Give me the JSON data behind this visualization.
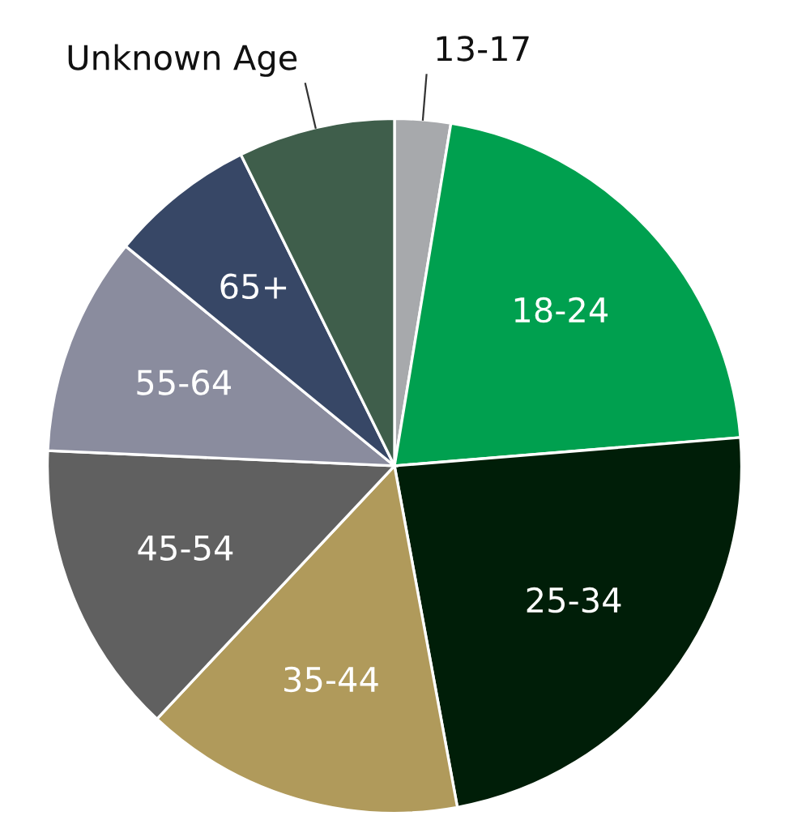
{
  "chart_data": {
    "type": "pie",
    "categories": [
      "13-17",
      "18-24",
      "25-34",
      "35-44",
      "45-54",
      "55-64",
      "65+",
      "Unknown Age"
    ],
    "values": [
      2.6,
      21.1,
      23.4,
      14.9,
      13.7,
      10.2,
      6.8,
      7.3
    ],
    "colors": [
      "#a7a9ac",
      "#00a04f",
      "#001e08",
      "#b09a5b",
      "#606060",
      "#8a8c9e",
      "#374766",
      "#3f5e4b"
    ]
  }
}
